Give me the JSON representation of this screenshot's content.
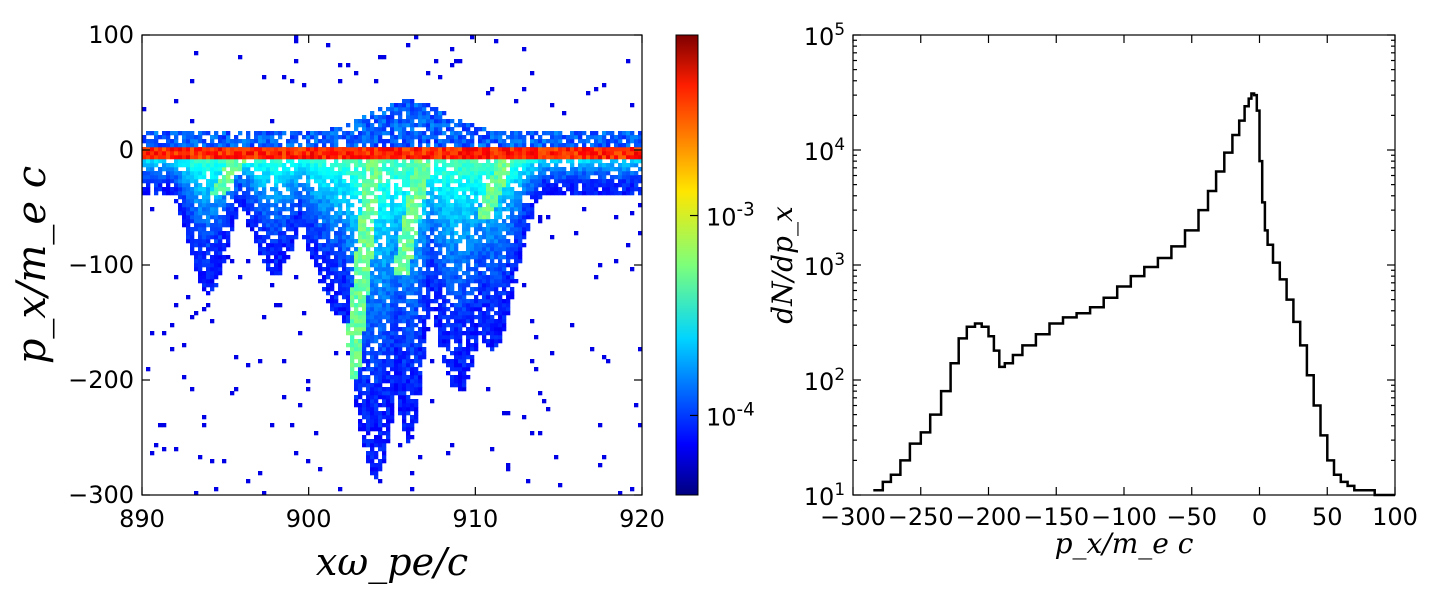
{
  "chart_data": [
    {
      "type": "heatmap",
      "title": "",
      "xlabel": "xω_pe/c",
      "ylabel": "p_x/m_e c",
      "xlim": [
        890,
        920
      ],
      "ylim": [
        -300,
        100
      ],
      "x_ticks": [
        {
          "value": 890,
          "label": "890"
        },
        {
          "value": 900,
          "label": "900"
        },
        {
          "value": 910,
          "label": "910"
        },
        {
          "value": 920,
          "label": "920"
        }
      ],
      "y_ticks": [
        {
          "value": 100,
          "label": "100"
        },
        {
          "value": 0,
          "label": "0"
        },
        {
          "value": -100,
          "label": "−100"
        },
        {
          "value": -200,
          "label": "−200"
        },
        {
          "value": -300,
          "label": "−300"
        }
      ],
      "colorbar": {
        "scale": "log",
        "range": [
          4e-05,
          0.008
        ],
        "ticks": [
          {
            "value": 0.001,
            "label": "10",
            "exp": "-3"
          },
          {
            "value": 0.0001,
            "label": "10",
            "exp": "-4"
          }
        ],
        "colormap": "jet"
      },
      "features": [
        {
          "x": 890,
          "px": 0,
          "density": 0.005,
          "note": "dense band"
        },
        {
          "x": 894,
          "px": -100,
          "density": 0.0003
        },
        {
          "x": 898,
          "px": -80,
          "density": 0.0002
        },
        {
          "x": 904,
          "px": -250,
          "density": 0.0002
        },
        {
          "x": 907,
          "px": -110,
          "density": 0.0008
        },
        {
          "x": 910,
          "px": -180,
          "density": 0.0003
        },
        {
          "x": 906,
          "px": 40,
          "density": 0.0001
        }
      ]
    },
    {
      "type": "line",
      "title": "",
      "xlabel": "p_x/m_e c",
      "ylabel": "dN/dp_x",
      "xlim": [
        -300,
        100
      ],
      "ylim": [
        10,
        100000
      ],
      "yscale": "log",
      "x_ticks": [
        {
          "value": -300,
          "label": "−300"
        },
        {
          "value": -250,
          "label": "−250"
        },
        {
          "value": -200,
          "label": "−200"
        },
        {
          "value": -150,
          "label": "−150"
        },
        {
          "value": -100,
          "label": "−100"
        },
        {
          "value": -50,
          "label": "−50"
        },
        {
          "value": 0,
          "label": "0"
        },
        {
          "value": 50,
          "label": "50"
        },
        {
          "value": 100,
          "label": "100"
        }
      ],
      "y_ticks": [
        {
          "value": 10,
          "label": "10",
          "exp": "1"
        },
        {
          "value": 100,
          "label": "10",
          "exp": "2"
        },
        {
          "value": 1000,
          "label": "10",
          "exp": "3"
        },
        {
          "value": 10000,
          "label": "10",
          "exp": "4"
        },
        {
          "value": 100000,
          "label": "10",
          "exp": "5"
        }
      ],
      "series": [
        {
          "x": [
            -285,
            -278,
            -272,
            -265,
            -258,
            -250,
            -243,
            -235,
            -228,
            -222,
            -216,
            -210,
            -205,
            -200,
            -196,
            -192,
            -188,
            -182,
            -175,
            -165,
            -155,
            -145,
            -135,
            -125,
            -115,
            -105,
            -95,
            -85,
            -75,
            -65,
            -55,
            -45,
            -38,
            -32,
            -26,
            -20,
            -15,
            -11,
            -8,
            -6,
            -4,
            -2,
            0,
            2,
            4,
            6,
            10,
            15,
            20,
            25,
            30,
            35,
            40,
            45,
            50,
            55,
            60,
            65,
            70,
            75,
            80,
            85,
            90,
            95,
            100
          ],
          "y": [
            11,
            13,
            15,
            20,
            28,
            35,
            50,
            80,
            140,
            230,
            290,
            310,
            290,
            240,
            180,
            130,
            140,
            165,
            200,
            250,
            310,
            350,
            380,
            430,
            520,
            650,
            800,
            960,
            1150,
            1450,
            2000,
            3000,
            4400,
            6500,
            9500,
            13500,
            18000,
            24000,
            28000,
            31000,
            30000,
            22000,
            8000,
            3500,
            2000,
            1500,
            1050,
            750,
            500,
            320,
            200,
            110,
            60,
            33,
            20,
            15,
            13,
            12,
            11,
            11,
            11,
            10,
            10,
            10,
            10
          ]
        }
      ]
    }
  ]
}
